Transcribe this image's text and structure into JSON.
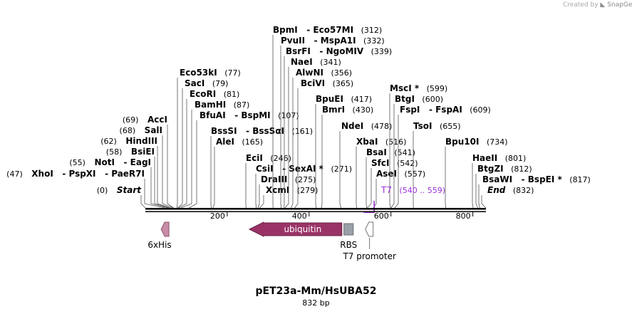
{
  "credit": {
    "prefix": "Created by",
    "brand": "SnapGene"
  },
  "plasmid": {
    "name": "pET23a-Mm/HsUBA52",
    "size_label": "832 bp"
  },
  "sites": [
    {
      "label": "Start",
      "pos": "(0)",
      "bp": 0,
      "side": "left",
      "italic": true
    },
    {
      "label": "XhoI",
      "alt": "PspXI",
      "alt2": "PaeR7I",
      "pos": "(47)",
      "bp": 47,
      "side": "left"
    },
    {
      "label": "NotI",
      "alt": "EagI",
      "pos": "(55)",
      "bp": 55,
      "side": "left"
    },
    {
      "label": "BsiEI",
      "pos": "(58)",
      "bp": 58,
      "side": "left"
    },
    {
      "label": "HindIII",
      "pos": "(62)",
      "bp": 62,
      "side": "left"
    },
    {
      "label": "SalI",
      "pos": "(68)",
      "bp": 68,
      "side": "left"
    },
    {
      "label": "AccI",
      "pos": "(69)",
      "bp": 69,
      "side": "left"
    },
    {
      "label": "Eco53kI",
      "pos": "(77)",
      "bp": 77,
      "side": "right"
    },
    {
      "label": "SacI",
      "pos": "(79)",
      "bp": 79,
      "side": "right"
    },
    {
      "label": "EcoRI",
      "pos": "(81)",
      "bp": 81,
      "side": "right"
    },
    {
      "label": "BamHI",
      "pos": "(87)",
      "bp": 87,
      "side": "right"
    },
    {
      "label": "BfuAI",
      "alt": "BspMI",
      "pos": "(107)",
      "bp": 107,
      "side": "right"
    },
    {
      "label": "BssSI",
      "alt": "BssSαI",
      "pos": "(161)",
      "bp": 161,
      "side": "right"
    },
    {
      "label": "AleI",
      "pos": "(165)",
      "bp": 165,
      "side": "right"
    },
    {
      "label": "EciI",
      "pos": "(246)",
      "bp": 246,
      "side": "right"
    },
    {
      "label": "CsiI",
      "alt": "SexAI *",
      "pos": "(271)",
      "bp": 271,
      "side": "right"
    },
    {
      "label": "DraIII",
      "pos": "(275)",
      "bp": 275,
      "side": "right"
    },
    {
      "label": "XcmI",
      "pos": "(279)",
      "bp": 279,
      "side": "right"
    },
    {
      "label": "BpmI",
      "alt": "Eco57MI",
      "pos": "(312)",
      "bp": 312,
      "side": "right"
    },
    {
      "label": "PvuII",
      "alt": "MspA1I",
      "pos": "(332)",
      "bp": 332,
      "side": "right"
    },
    {
      "label": "BsrFI",
      "alt": "NgoMIV",
      "pos": "(339)",
      "bp": 339,
      "side": "right"
    },
    {
      "label": "NaeI",
      "pos": "(341)",
      "bp": 341,
      "side": "right"
    },
    {
      "label": "AlwNI",
      "pos": "(356)",
      "bp": 356,
      "side": "right"
    },
    {
      "label": "BciVI",
      "pos": "(365)",
      "bp": 365,
      "side": "right"
    },
    {
      "label": "BpuEI",
      "pos": "(417)",
      "bp": 417,
      "side": "right"
    },
    {
      "label": "BmrI",
      "pos": "(430)",
      "bp": 430,
      "side": "right"
    },
    {
      "label": "NdeI",
      "pos": "(478)",
      "bp": 478,
      "side": "right"
    },
    {
      "label": "XbaI",
      "pos": "(516)",
      "bp": 516,
      "side": "right"
    },
    {
      "label": "BsaI",
      "pos": "(541)",
      "bp": 541,
      "side": "right"
    },
    {
      "label": "SfcI",
      "pos": "(542)",
      "bp": 542,
      "side": "right"
    },
    {
      "label": "AseI",
      "pos": "(557)",
      "bp": 557,
      "side": "right"
    },
    {
      "label": "MscI *",
      "pos": "(599)",
      "bp": 599,
      "side": "right"
    },
    {
      "label": "BtgI",
      "pos": "(600)",
      "bp": 600,
      "side": "right"
    },
    {
      "label": "FspI",
      "alt": "FspAI",
      "pos": "(609)",
      "bp": 609,
      "side": "right"
    },
    {
      "label": "TsoI",
      "pos": "(655)",
      "bp": 655,
      "side": "right"
    },
    {
      "label": "Bpu10I",
      "pos": "(734)",
      "bp": 734,
      "side": "right"
    },
    {
      "label": "HaeII",
      "pos": "(801)",
      "bp": 801,
      "side": "right"
    },
    {
      "label": "BtgZI",
      "pos": "(812)",
      "bp": 812,
      "side": "right"
    },
    {
      "label": "BsaWI",
      "alt": "BspEI *",
      "pos": "(817)",
      "bp": 817,
      "side": "right"
    },
    {
      "label": "End",
      "pos": "(832)",
      "bp": 832,
      "side": "right",
      "italic": true
    }
  ],
  "primer": {
    "label": "T7",
    "range": "(540 .. 559)",
    "start": 540,
    "end": 559,
    "color": "#9b30d9"
  },
  "ruler": {
    "total_bp": 832,
    "ticks": [
      200,
      400,
      600,
      800
    ]
  },
  "features": [
    {
      "label": "6xHis",
      "start": 30,
      "end": 47,
      "direction": "reverse",
      "color": "#c98ba6"
    },
    {
      "label": "ubiquitin",
      "start": 254,
      "end": 480,
      "direction": "reverse",
      "color": "#993366"
    },
    {
      "label": "RBS",
      "start": 485,
      "end": 508,
      "direction": "none",
      "color": "#9aa0a8"
    },
    {
      "label": "T7 promoter",
      "start": 540,
      "end": 559,
      "direction": "reverse",
      "color": "#ffffff"
    }
  ],
  "colors": {
    "accent": "#993366",
    "primer": "#9b30d9",
    "line": "#000000"
  }
}
